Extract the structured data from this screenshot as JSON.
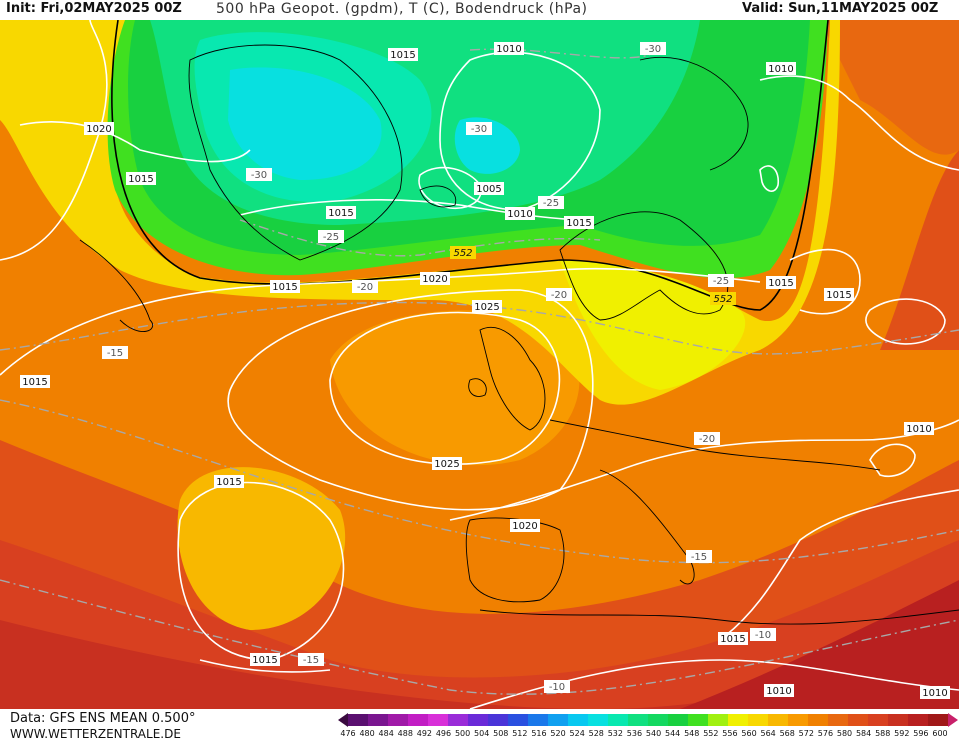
{
  "header": {
    "init": "Init: Fri,02MAY2025 00Z",
    "title": "500 hPa Geopot. (gpdm), T (C), Bodendruck (hPa)",
    "valid": "Valid: Sun,11MAY2025 00Z"
  },
  "footer": {
    "data_source": "Data: GFS ENS MEAN 0.500°",
    "website": "WWW.WETTERZENTRALE.DE"
  },
  "colorbar": {
    "labels": [
      "476",
      "480",
      "484",
      "488",
      "492",
      "496",
      "500",
      "504",
      "508",
      "512",
      "516",
      "520",
      "524",
      "528",
      "532",
      "536",
      "540",
      "544",
      "548",
      "552",
      "556",
      "560",
      "564",
      "568",
      "572",
      "576",
      "580",
      "584",
      "588",
      "592",
      "596",
      "600"
    ],
    "colors": [
      "#3a0a40",
      "#5a1070",
      "#7a1690",
      "#a01aa8",
      "#c21ec4",
      "#d830d8",
      "#9a2cd8",
      "#6a2ad8",
      "#4a34d8",
      "#2a50e0",
      "#1a78ea",
      "#10a0f0",
      "#08c8f0",
      "#08e0e0",
      "#08e8b0",
      "#10e080",
      "#14d860",
      "#18d040",
      "#40e020",
      "#a0f010",
      "#f0f000",
      "#f8d800",
      "#f8b800",
      "#f89a00",
      "#f08000",
      "#e86810",
      "#e05018",
      "#d84020",
      "#c83020",
      "#b82020",
      "#a01818",
      "#c8206a"
    ]
  },
  "pressure_labels": [
    "1015",
    "1010",
    "1010",
    "1020",
    "1015",
    "1005",
    "1015",
    "1010",
    "1015",
    "1015",
    "1020",
    "1025",
    "1025",
    "1015",
    "1015",
    "1015",
    "1020",
    "1010",
    "1015",
    "1015",
    "1010",
    "1010",
    "1015"
  ],
  "height_labels": [
    "552",
    "552"
  ],
  "temperature_labels": [
    "-30",
    "-30",
    "-30",
    "-25",
    "-25",
    "-25",
    "-20",
    "-20",
    "-20",
    "-15",
    "-15",
    "-15",
    "-10",
    "-10"
  ]
}
